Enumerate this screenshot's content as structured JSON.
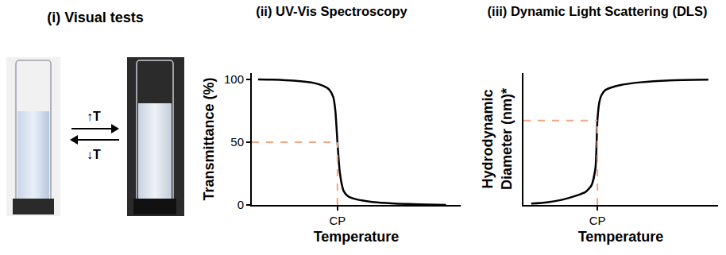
{
  "visual_tests": {
    "title": "(i) Visual tests",
    "heating_label": "↑T",
    "cooling_label": "↓T"
  },
  "chart_data": [
    {
      "type": "line",
      "title": "(ii) UV-Vis Spectroscopy",
      "x_label": "Temperature",
      "y_label": "Transmittance (%)",
      "x": [
        3,
        10,
        20,
        30,
        34,
        37,
        39,
        40,
        41,
        42,
        43,
        44,
        46,
        50,
        55,
        60,
        70,
        80,
        93
      ],
      "values": [
        100,
        99.8,
        99,
        97,
        95,
        92,
        86,
        75,
        50,
        28,
        17,
        11,
        7,
        4.5,
        3,
        2,
        1,
        0.5,
        0
      ],
      "color": "#000000",
      "line_style": "solid",
      "xlim": [
        0,
        100
      ],
      "ylim": [
        0,
        105
      ],
      "xticks": [
        {
          "value": 41,
          "label": "CP"
        }
      ],
      "yticks": [
        0,
        50,
        100
      ],
      "cp_guide": {
        "x": 41,
        "y": 50
      },
      "grid": false
    },
    {
      "type": "line",
      "title": "(iii) Dynamic Light Scattering (DLS)",
      "x_label": "Temperature",
      "y_label": "Hydrodynamic Diameter (nm)*",
      "x": [
        4,
        12,
        20,
        27,
        32,
        35,
        37,
        38,
        39,
        40,
        42,
        45,
        50,
        60,
        75,
        95
      ],
      "values": [
        1,
        2,
        4,
        7,
        10,
        15,
        28,
        64,
        78,
        83,
        87,
        89,
        91,
        93,
        94.5,
        95
      ],
      "color": "#000000",
      "line_style": "solid",
      "xlim": [
        0,
        100
      ],
      "ylim": [
        0,
        100
      ],
      "xticks": [
        {
          "value": 38,
          "label": "CP"
        }
      ],
      "yticks": [],
      "tick_labels": "x",
      "cp_guide": {
        "x": 38,
        "y": 64
      },
      "grid": false
    }
  ]
}
